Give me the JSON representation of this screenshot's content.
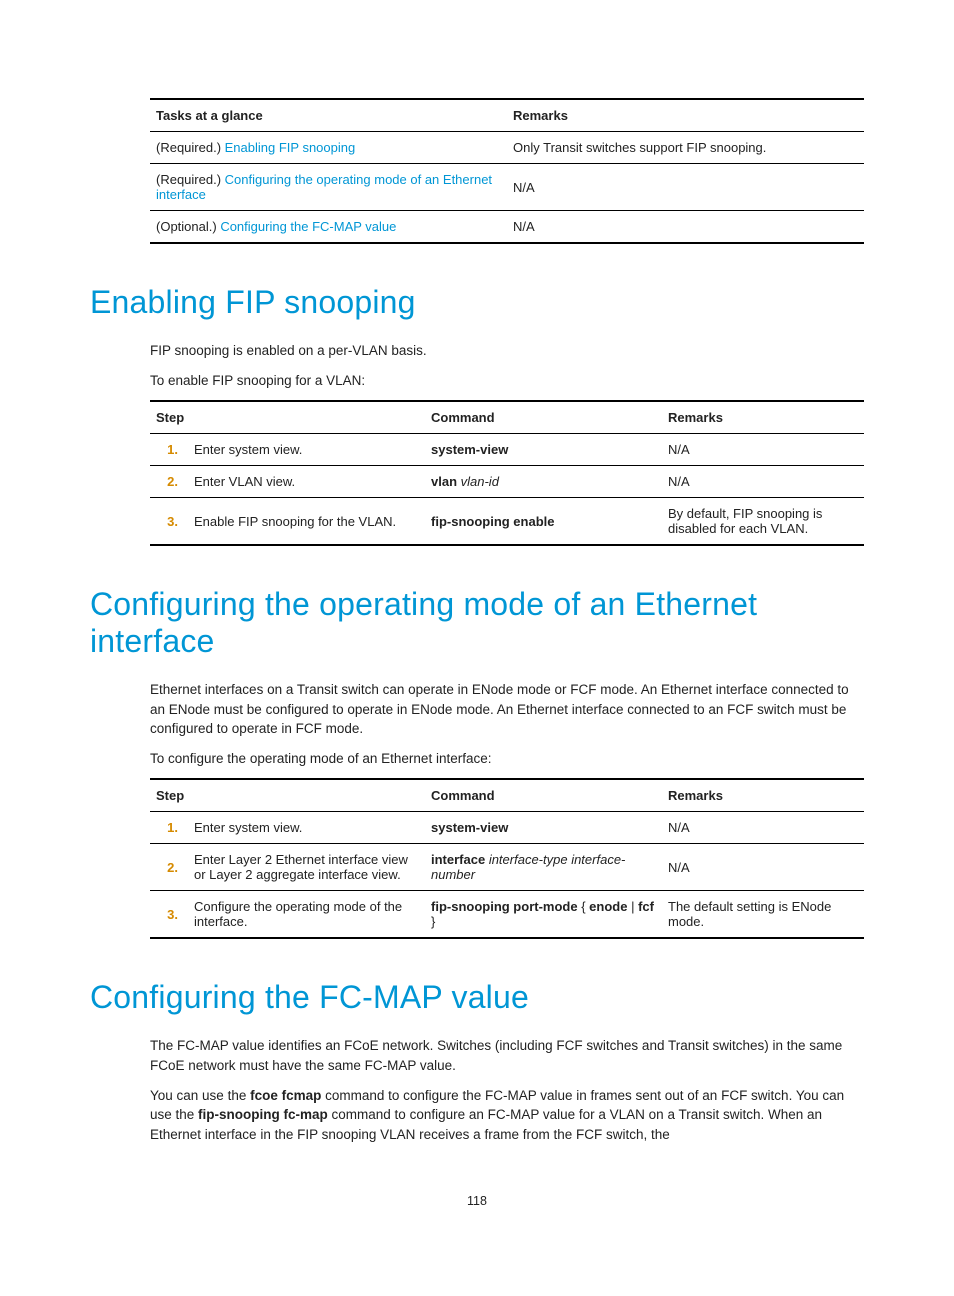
{
  "colors": {
    "heading": "#0096d5",
    "link": "#0096d5",
    "stepNum": "#d58a00",
    "text": "#222222",
    "rule": "#000000",
    "background": "#ffffff"
  },
  "fonts": {
    "body_pt": 10,
    "h1_pt": 24,
    "family": "Arial"
  },
  "tasksTable": {
    "headers": {
      "col1": "Tasks at a glance",
      "col2": "Remarks"
    },
    "rows": [
      {
        "prefix": "(Required.) ",
        "link": "Enabling FIP snooping",
        "remark": "Only Transit switches support FIP snooping."
      },
      {
        "prefix": "(Required.) ",
        "link": "Configuring the operating mode of an Ethernet interface",
        "remark": "N/A"
      },
      {
        "prefix": "(Optional.) ",
        "link": "Configuring the FC-MAP value",
        "remark": "N/A"
      }
    ]
  },
  "section1": {
    "title": "Enabling FIP snooping",
    "para1": "FIP snooping is enabled on a per-VLAN basis.",
    "para2": "To enable FIP snooping for a VLAN:",
    "table": {
      "headers": {
        "step": "Step",
        "cmd": "Command",
        "remark": "Remarks"
      },
      "rows": [
        {
          "n": "1.",
          "step": "Enter system view.",
          "cmd_bold": "system-view",
          "cmd_ital": "",
          "remark": "N/A"
        },
        {
          "n": "2.",
          "step": "Enter VLAN view.",
          "cmd_bold": "vlan",
          "cmd_ital": " vlan-id",
          "remark": "N/A"
        },
        {
          "n": "3.",
          "step": "Enable FIP snooping for the VLAN.",
          "cmd_bold": "fip-snooping enable",
          "cmd_ital": "",
          "remark": "By default, FIP snooping is disabled for each VLAN."
        }
      ]
    }
  },
  "section2": {
    "title": "Configuring the operating mode of an Ethernet interface",
    "para1": "Ethernet interfaces on a Transit switch can operate in ENode mode or FCF mode. An Ethernet interface connected to an ENode must be configured to operate in ENode mode. An Ethernet interface connected to an FCF switch must be configured to operate in FCF mode.",
    "para2": "To configure the operating mode of an Ethernet interface:",
    "table": {
      "headers": {
        "step": "Step",
        "cmd": "Command",
        "remark": "Remarks"
      },
      "rows": [
        {
          "n": "1.",
          "step": "Enter system view.",
          "cmd_bold": "system-view",
          "cmd_ital": "",
          "remark": "N/A"
        },
        {
          "n": "2.",
          "step": "Enter Layer 2 Ethernet interface view or Layer 2 aggregate interface view.",
          "cmd_bold": "interface",
          "cmd_ital": " interface-type interface-number",
          "remark": "N/A"
        },
        {
          "n": "3.",
          "step": "Configure the operating mode of the interface.",
          "cmd_bold": "fip-snooping port-mode",
          "cmd_tail": " { ",
          "cmd_bold2": "enode",
          "cmd_mid": " | ",
          "cmd_bold3": "fcf",
          "cmd_end": " }",
          "remark": "The default setting is ENode mode."
        }
      ]
    }
  },
  "section3": {
    "title": "Configuring the FC-MAP value",
    "para1": "The FC-MAP value identifies an FCoE network. Switches (including FCF switches and Transit switches) in the same FCoE network must have the same FC-MAP value.",
    "para2_pre": "You can use the ",
    "para2_cmd1": "fcoe fcmap",
    "para2_mid1": " command to configure the FC-MAP value in frames sent out of an FCF switch. You can use the ",
    "para2_cmd2": "fip-snooping fc-map",
    "para2_mid2": " command to configure an FC-MAP value for a VLAN on a Transit switch. When an Ethernet interface in the FIP snooping VLAN receives a frame from the FCF switch, the"
  },
  "pageNumber": "118"
}
